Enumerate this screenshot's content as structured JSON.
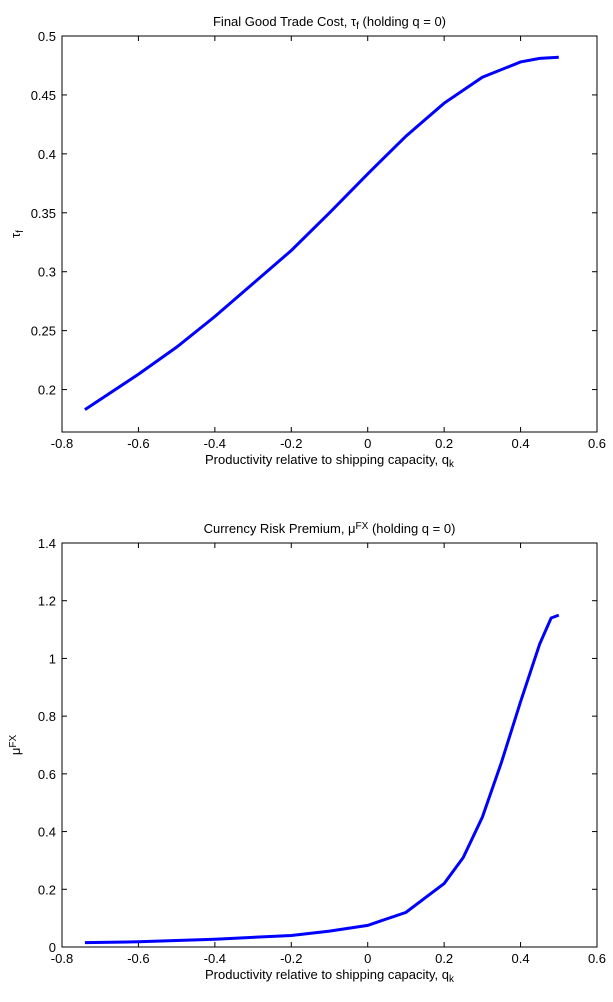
{
  "chart_data": [
    {
      "type": "line",
      "title": [
        {
          "text": "Final Good Trade Cost, τ"
        },
        {
          "text": "f",
          "script": "sub"
        },
        {
          "text": " (holding q = 0)"
        }
      ],
      "xlabel": [
        {
          "text": "Productivity relative to shipping capacity, q"
        },
        {
          "text": "k",
          "script": "sub"
        }
      ],
      "ylabel": [
        {
          "text": "τ"
        },
        {
          "text": "f",
          "script": "sub"
        }
      ],
      "xlim": [
        -0.8,
        0.6
      ],
      "xticks": [
        -0.8,
        -0.6,
        -0.4,
        -0.2,
        0,
        0.2,
        0.4,
        0.6
      ],
      "ylim": [
        0.164,
        0.5
      ],
      "yticks": [
        0.2,
        0.25,
        0.3,
        0.35,
        0.4,
        0.45,
        0.5
      ],
      "x": [
        -0.74,
        -0.6,
        -0.5,
        -0.4,
        -0.3,
        -0.2,
        -0.1,
        0,
        0.1,
        0.2,
        0.3,
        0.4,
        0.45,
        0.5
      ],
      "series": [
        {
          "color": "#0000ff",
          "values": [
            0.183,
            0.213,
            0.236,
            0.262,
            0.29,
            0.318,
            0.35,
            0.383,
            0.415,
            0.443,
            0.465,
            0.478,
            0.481,
            0.482
          ]
        }
      ]
    },
    {
      "type": "line",
      "title": [
        {
          "text": "Currency Risk Premium, μ"
        },
        {
          "text": "FX",
          "script": "super"
        },
        {
          "text": " (holding q = 0)"
        }
      ],
      "xlabel": [
        {
          "text": "Productivity relative to shipping capacity, q"
        },
        {
          "text": "k",
          "script": "sub"
        }
      ],
      "ylabel": [
        {
          "text": "μ"
        },
        {
          "text": "FX",
          "script": "super"
        }
      ],
      "xlim": [
        -0.8,
        0.6
      ],
      "xticks": [
        -0.8,
        -0.6,
        -0.4,
        -0.2,
        0,
        0.2,
        0.4,
        0.6
      ],
      "ylim": [
        0,
        1.4
      ],
      "yticks": [
        0,
        0.2,
        0.4,
        0.6,
        0.8,
        1,
        1.2,
        1.4
      ],
      "x": [
        -0.74,
        -0.6,
        -0.4,
        -0.2,
        -0.1,
        0,
        0.1,
        0.2,
        0.25,
        0.3,
        0.35,
        0.4,
        0.45,
        0.48,
        0.5
      ],
      "series": [
        {
          "color": "#0000ff",
          "values": [
            0.015,
            0.018,
            0.027,
            0.04,
            0.055,
            0.075,
            0.12,
            0.22,
            0.31,
            0.45,
            0.64,
            0.85,
            1.05,
            1.14,
            1.15
          ]
        }
      ]
    }
  ]
}
